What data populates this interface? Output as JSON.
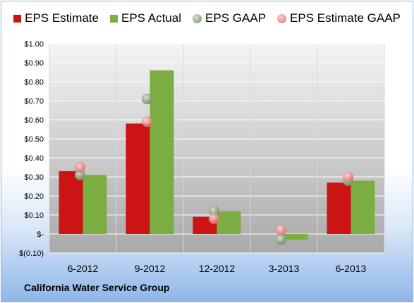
{
  "chart_data": {
    "type": "bar",
    "categories": [
      "6-2012",
      "9-2012",
      "12-2012",
      "3-2013",
      "6-2013"
    ],
    "series": [
      {
        "name": "EPS Estimate",
        "type": "bar",
        "color": "#cc1414",
        "values": [
          0.33,
          0.58,
          0.09,
          0.0,
          0.27
        ]
      },
      {
        "name": "EPS Actual",
        "type": "bar",
        "color": "#7cad42",
        "values": [
          0.31,
          0.86,
          0.12,
          -0.03,
          0.28
        ]
      },
      {
        "name": "EPS GAAP",
        "type": "scatter",
        "color": "#98b08e",
        "values": [
          0.31,
          0.71,
          0.12,
          -0.03,
          0.28
        ]
      },
      {
        "name": "EPS Estimate GAAP",
        "type": "scatter",
        "color": "#ec8c8c",
        "values": [
          0.35,
          0.59,
          0.08,
          0.02,
          0.3
        ]
      }
    ],
    "ylim": [
      -0.1,
      1.0
    ],
    "yticks": [
      1.0,
      0.9,
      0.8,
      0.7,
      0.6,
      0.5,
      0.4,
      0.3,
      0.2,
      0.1,
      0.0,
      -0.1
    ],
    "ytick_labels": [
      "$1.00",
      "$0.90",
      "$0.80",
      "$0.70",
      "$0.60",
      "$0.50",
      "$0.40",
      "$0.30",
      "$0.20",
      "$0.10",
      "$-",
      "$(0.10)"
    ],
    "grid": true,
    "legend_position": "top"
  },
  "footer": {
    "company": "California Water Service Group"
  }
}
